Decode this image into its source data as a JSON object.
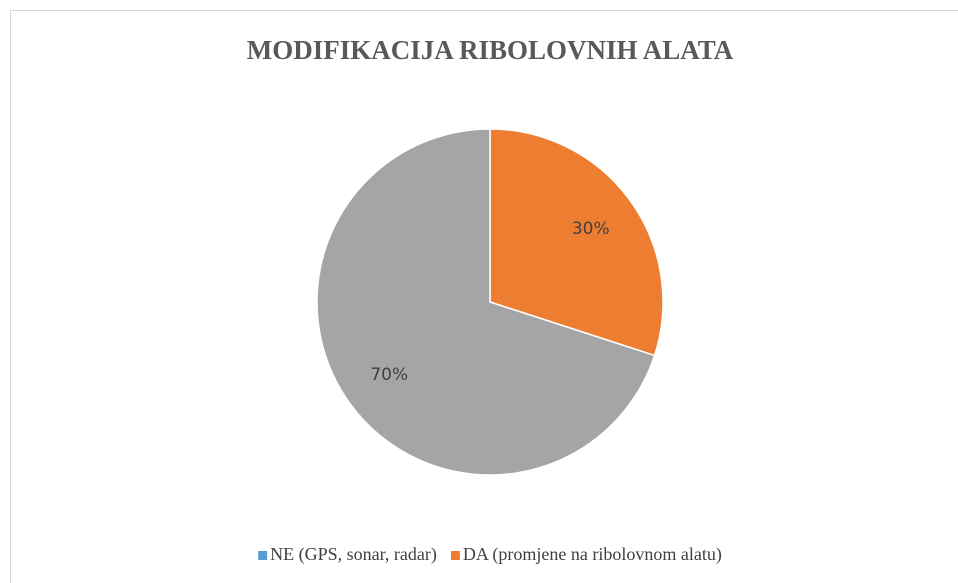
{
  "chart_data": {
    "type": "pie",
    "title": "MODIFIKACIJA RIBOLOVNIH ALATA",
    "categories": [
      "NE (GPS, sonar, radar)",
      "DA (promjene na ribolovnom alatu)",
      null
    ],
    "values": [
      0,
      30,
      70
    ],
    "value_labels": [
      null,
      "30%",
      "70%"
    ],
    "colors": [
      "#5b9bd5",
      "#ed7d31",
      "#a5a5a5"
    ],
    "legend": "bottom"
  }
}
